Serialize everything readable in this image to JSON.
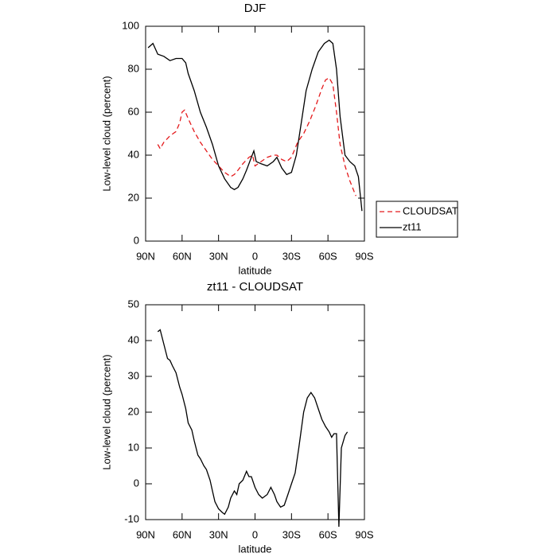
{
  "chart_data": [
    {
      "type": "line",
      "title": "DJF",
      "x_label": "latitude",
      "y_label": "Low-level cloud (percent)",
      "xlim": [
        90,
        -90
      ],
      "xticks": [
        {
          "value": 90,
          "label": "90N"
        },
        {
          "value": 60,
          "label": "60N"
        },
        {
          "value": 30,
          "label": "30N"
        },
        0,
        {
          "value": -30,
          "label": "30S"
        },
        {
          "value": -60,
          "label": "60S"
        },
        {
          "value": -90,
          "label": "90S"
        }
      ],
      "ylim": [
        0,
        100
      ],
      "yticks": [
        0,
        20,
        40,
        60,
        80,
        100
      ],
      "legend_position": "right",
      "series": [
        {
          "name": "CLOUDSAT",
          "color": "#e41a1c",
          "dash": true,
          "x": [
            80,
            78,
            75,
            70,
            65,
            62,
            60,
            58,
            55,
            50,
            45,
            40,
            35,
            30,
            25,
            20,
            17,
            14,
            10,
            5,
            2,
            0,
            -5,
            -10,
            -15,
            -18,
            -22,
            -26,
            -30,
            -35,
            -40,
            -45,
            -50,
            -55,
            -58,
            -61,
            -64,
            -67,
            -70,
            -74,
            -78,
            -83
          ],
          "values": [
            45,
            43,
            46,
            49,
            51,
            55,
            60,
            61,
            57,
            51,
            46,
            42,
            38,
            35,
            32,
            30,
            31,
            33,
            36,
            39,
            40,
            35,
            37,
            39,
            40,
            40,
            38,
            37,
            39,
            46,
            50,
            56,
            63,
            71,
            75,
            76,
            73,
            60,
            45,
            35,
            28,
            21
          ]
        },
        {
          "name": "zt11",
          "color": "#000000",
          "dash": false,
          "x": [
            88,
            84,
            80,
            75,
            70,
            65,
            60,
            57,
            55,
            50,
            45,
            40,
            35,
            30,
            25,
            20,
            17,
            14,
            10,
            7,
            3,
            1,
            -1,
            -5,
            -10,
            -15,
            -18,
            -22,
            -26,
            -30,
            -34,
            -38,
            -42,
            -47,
            -52,
            -57,
            -61,
            -64,
            -67,
            -70,
            -74,
            -78,
            -82,
            -85,
            -88
          ],
          "values": [
            90,
            92,
            87,
            86,
            84,
            85,
            85,
            83,
            78,
            70,
            60,
            53,
            45,
            35,
            29,
            25,
            24,
            25,
            29,
            33,
            39,
            42,
            37,
            36,
            35,
            37,
            39,
            34,
            31,
            32,
            40,
            55,
            70,
            80,
            88,
            92,
            93.5,
            92,
            80,
            58,
            40,
            37,
            35,
            30,
            14
          ]
        }
      ]
    },
    {
      "type": "line",
      "title": "zt11 - CLOUDSAT",
      "x_label": "latitude",
      "y_label": "Low-level cloud (percent)",
      "xlim": [
        90,
        -90
      ],
      "xticks": [
        {
          "value": 90,
          "label": "90N"
        },
        {
          "value": 60,
          "label": "60N"
        },
        {
          "value": 30,
          "label": "30N"
        },
        0,
        {
          "value": -30,
          "label": "30S"
        },
        {
          "value": -60,
          "label": "60S"
        },
        {
          "value": -90,
          "label": "90S"
        }
      ],
      "ylim": [
        -10,
        50
      ],
      "yticks": [
        -10,
        0,
        10,
        20,
        30,
        40,
        50
      ],
      "color": "#000000",
      "x": [
        80,
        78,
        75,
        72,
        70,
        68,
        65,
        62,
        60,
        57,
        55,
        52,
        50,
        47,
        45,
        42,
        40,
        37,
        35,
        33,
        30,
        27,
        25,
        22,
        20,
        17,
        15,
        13,
        10,
        7,
        5,
        3,
        0,
        -3,
        -6,
        -10,
        -13,
        -16,
        -18,
        -21,
        -24,
        -27,
        -30,
        -33,
        -36,
        -40,
        -43,
        -46,
        -49,
        -52,
        -55,
        -58,
        -61,
        -63,
        -65,
        -67,
        -69,
        -71,
        -74,
        -76
      ],
      "values": [
        42.5,
        43,
        39,
        35,
        34.5,
        33,
        31,
        27,
        25,
        21,
        17,
        15,
        12,
        8,
        7,
        5,
        4,
        1,
        -2,
        -5,
        -7,
        -8,
        -8.5,
        -6.5,
        -4,
        -2,
        -3,
        0,
        1,
        3.5,
        2,
        2,
        -1,
        -3,
        -4,
        -3,
        -1,
        -3,
        -5,
        -6.5,
        -6,
        -3,
        0,
        3,
        10,
        20,
        24,
        25.5,
        24,
        21,
        18,
        16,
        14.5,
        13,
        14,
        14,
        -12,
        10,
        13.5,
        14.5
      ]
    }
  ]
}
